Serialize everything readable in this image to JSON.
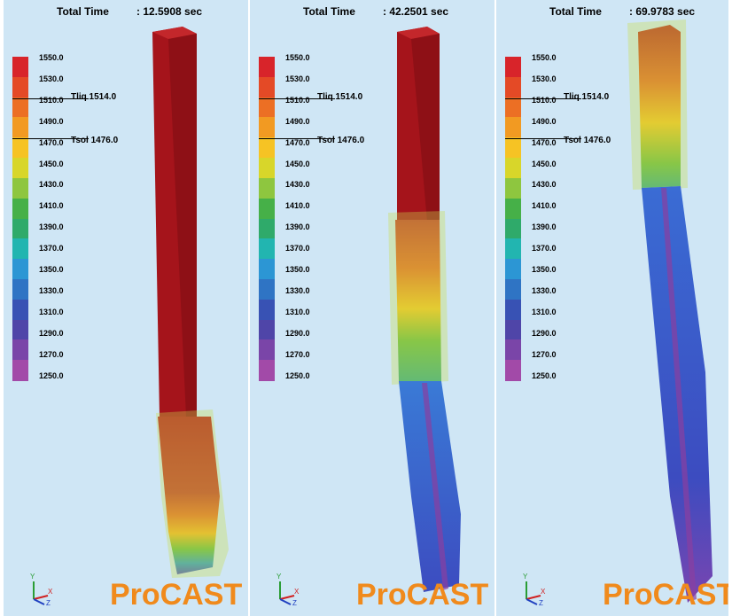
{
  "panels": [
    {
      "time_label": "Total Time",
      "time_value": ": 12.5908 sec"
    },
    {
      "time_label": "Total Time",
      "time_value": ": 42.2501 sec"
    },
    {
      "time_label": "Total Time",
      "time_value": ": 69.9783 sec"
    }
  ],
  "legend": {
    "ticks": [
      "1550.0",
      "1530.0",
      "1510.0",
      "1490.0",
      "1470.0",
      "1450.0",
      "1430.0",
      "1410.0",
      "1390.0",
      "1370.0",
      "1350.0",
      "1330.0",
      "1310.0",
      "1290.0",
      "1270.0",
      "1250.0"
    ],
    "colors": [
      "#d8242a",
      "#e44a26",
      "#ec6f24",
      "#f29a22",
      "#f6c324",
      "#d8d62a",
      "#8ec63f",
      "#46b048",
      "#2faa6a",
      "#22b5b0",
      "#2c96d4",
      "#2f74c4",
      "#3852b4",
      "#4f45a8",
      "#7a45a8",
      "#a24aa8"
    ],
    "tliq_label": "Tliq  1514.0",
    "tsol_label": "Tsol  1476.0"
  },
  "brand": "ProCAST",
  "axis_triad": {
    "y": "Y",
    "x": "X",
    "z": "Z"
  },
  "colors": {
    "background": "#cfe6f5",
    "liquid": "#b3181f",
    "mushy_box": "#c9dc4e",
    "solid": "#3559c5",
    "brand": "#f08a1c"
  }
}
